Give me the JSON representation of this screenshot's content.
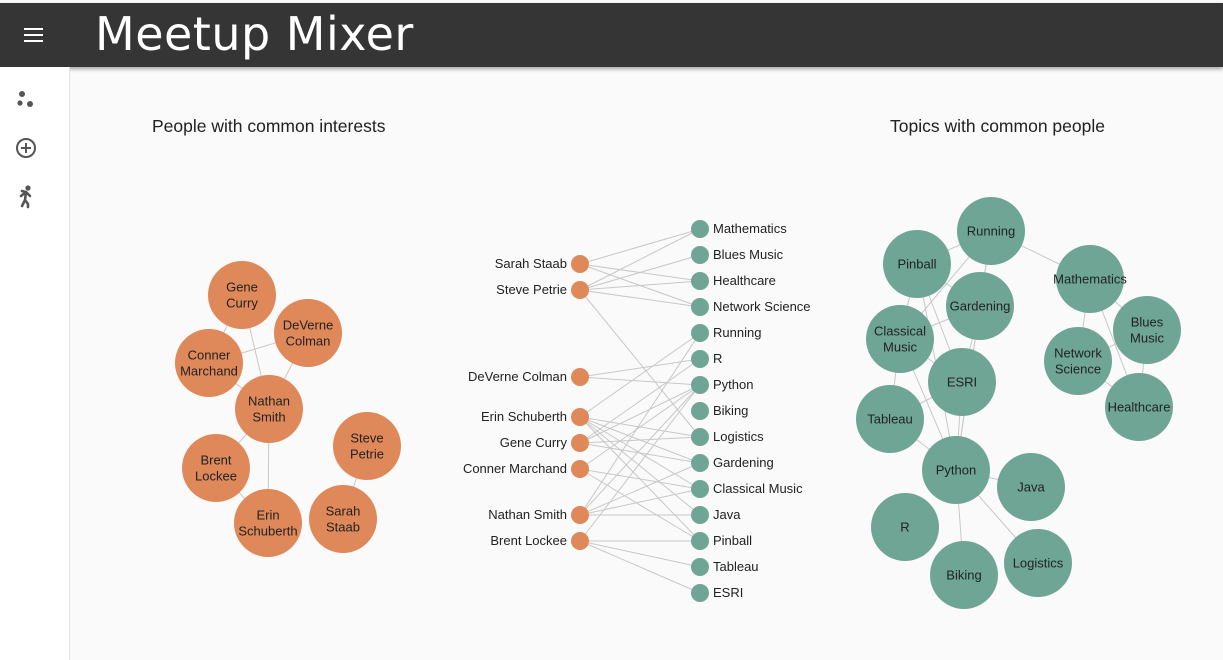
{
  "app": {
    "title": "Meetup Mixer",
    "menu_icon": "menu-icon",
    "nav": [
      {
        "id": "clusters",
        "icon": "bubbles-icon"
      },
      {
        "id": "add",
        "icon": "add-circle-icon"
      },
      {
        "id": "person",
        "icon": "person-walking-icon"
      }
    ]
  },
  "colors": {
    "person": "#df8859",
    "topic": "#6fa595",
    "edge": "#c8c8c8",
    "appbar": "#353535"
  },
  "sections": {
    "people_title": "People with common interests",
    "topics_title": "Topics with common people"
  },
  "people": [
    "Sarah Staab",
    "Steve Petrie",
    "DeVerne Colman",
    "Erin Schuberth",
    "Gene Curry",
    "Conner Marchand",
    "Nathan Smith",
    "Brent Lockee"
  ],
  "topics": [
    "Mathematics",
    "Blues Music",
    "Healthcare",
    "Network Science",
    "Running",
    "R",
    "Python",
    "Biking",
    "Logistics",
    "Gardening",
    "Classical Music",
    "Java",
    "Pinball",
    "Tableau",
    "ESRI"
  ],
  "interests": {
    "Sarah Staab": [
      "Mathematics",
      "Healthcare",
      "Network Science"
    ],
    "Steve Petrie": [
      "Mathematics",
      "Blues Music",
      "Healthcare",
      "Network Science",
      "Logistics"
    ],
    "DeVerne Colman": [
      "R",
      "Python"
    ],
    "Erin Schuberth": [
      "Running",
      "Logistics",
      "Gardening",
      "Classical Music",
      "Java",
      "Pinball"
    ],
    "Gene Curry": [
      "R",
      "Python",
      "Logistics",
      "Gardening"
    ],
    "Conner Marchand": [
      "Python",
      "Classical Music",
      "Pinball"
    ],
    "Nathan Smith": [
      "Running",
      "Python",
      "Gardening",
      "Classical Music",
      "Java"
    ],
    "Brent Lockee": [
      "Python",
      "Pinball",
      "Tableau",
      "ESRI"
    ]
  },
  "people_graph": {
    "nodes": [
      {
        "label": "Gene\nCurry"
      },
      {
        "label": "DeVerne\nColman"
      },
      {
        "label": "Conner\nMarchand"
      },
      {
        "label": "Nathan\nSmith"
      },
      {
        "label": "Steve\nPetrie"
      },
      {
        "label": "Brent\nLockee"
      },
      {
        "label": "Erin\nSchuberth"
      },
      {
        "label": "Sarah\nStaab"
      }
    ],
    "links": [
      [
        0,
        2
      ],
      [
        0,
        3
      ],
      [
        1,
        3
      ],
      [
        1,
        2
      ],
      [
        2,
        3
      ],
      [
        3,
        5
      ],
      [
        3,
        6
      ],
      [
        5,
        6
      ],
      [
        4,
        7
      ]
    ]
  },
  "topic_graph": {
    "nodes": [
      {
        "label": "Running"
      },
      {
        "label": "Pinball"
      },
      {
        "label": "Mathematics"
      },
      {
        "label": "Gardening"
      },
      {
        "label": "Classical\nMusic"
      },
      {
        "label": "Blues\nMusic"
      },
      {
        "label": "Network\nScience"
      },
      {
        "label": "ESRI"
      },
      {
        "label": "Healthcare"
      },
      {
        "label": "Tableau"
      },
      {
        "label": "Python"
      },
      {
        "label": "Java"
      },
      {
        "label": "R"
      },
      {
        "label": "Logistics"
      },
      {
        "label": "Biking"
      }
    ],
    "links": [
      [
        0,
        1
      ],
      [
        0,
        3
      ],
      [
        0,
        4
      ],
      [
        0,
        10
      ],
      [
        0,
        2
      ],
      [
        1,
        3
      ],
      [
        1,
        4
      ],
      [
        1,
        7
      ],
      [
        1,
        10
      ],
      [
        3,
        4
      ],
      [
        3,
        7
      ],
      [
        3,
        10
      ],
      [
        4,
        7
      ],
      [
        4,
        9
      ],
      [
        4,
        10
      ],
      [
        7,
        9
      ],
      [
        7,
        10
      ],
      [
        9,
        10
      ],
      [
        10,
        11
      ],
      [
        10,
        13
      ],
      [
        10,
        14
      ],
      [
        2,
        5
      ],
      [
        2,
        6
      ],
      [
        2,
        8
      ],
      [
        5,
        6
      ],
      [
        5,
        8
      ],
      [
        6,
        8
      ]
    ]
  }
}
